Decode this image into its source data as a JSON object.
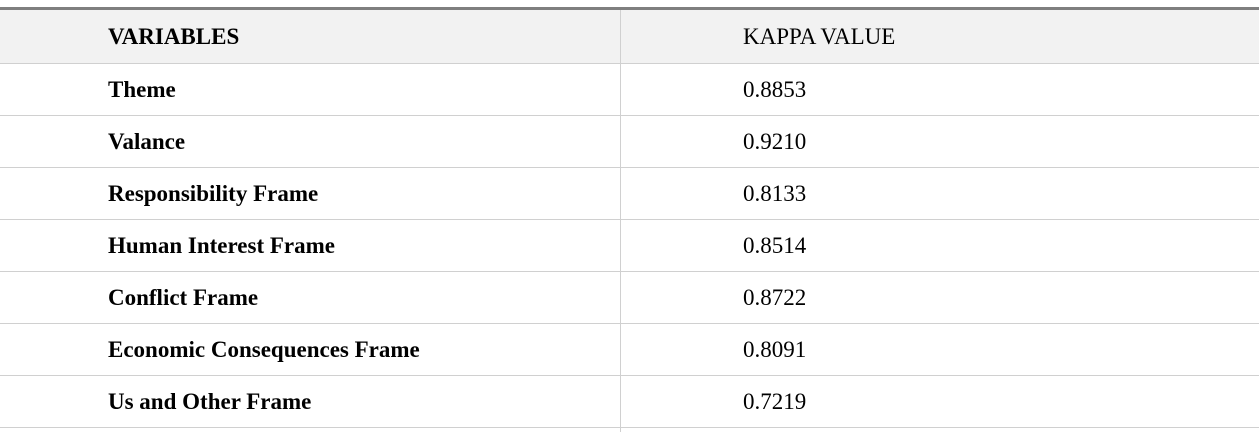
{
  "table": {
    "header": [
      "VARIABLES",
      "KAPPA VALUE"
    ],
    "rows": [
      [
        "Theme",
        "0.8853"
      ],
      [
        "Valance",
        "0.9210"
      ],
      [
        "Responsibility Frame",
        "0.8133"
      ],
      [
        "Human Interest Frame",
        "0.8514"
      ],
      [
        "Conflict Frame",
        "0.8722"
      ],
      [
        "Economic Consequences Frame",
        "0.8091"
      ],
      [
        "Us and Other Frame",
        "0.7219"
      ]
    ]
  }
}
